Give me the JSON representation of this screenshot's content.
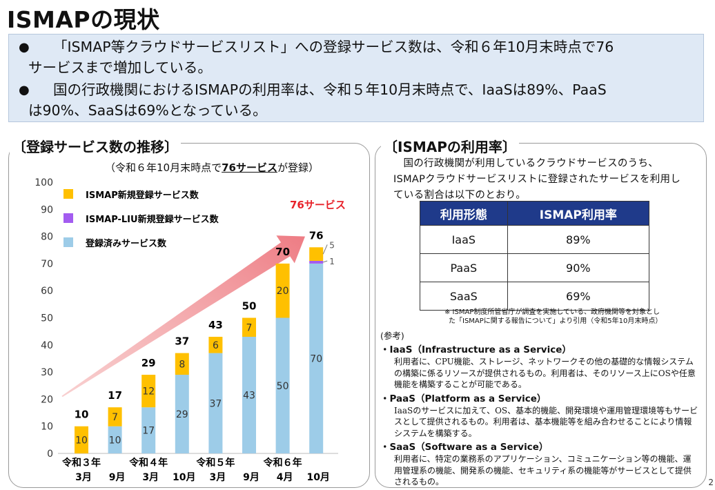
{
  "title": "ISMAPの現状",
  "summary": {
    "bullet": "●",
    "b1_line1": "「ISMAP等クラウドサービスリスト」への登録サービス数は、令和６年10月末時点で76",
    "b1_line2": "サービスまで増加している。",
    "b2_line1": "国の行政機関におけるISMAPの利用率は、令和５年10月末時点で、IaaSは89%、PaaS",
    "b2_line2": "は90%、SaaSは69%となっている。"
  },
  "left": {
    "title": "〔登録サービス数の推移〕",
    "note_prefix": "（令和６年10月末時点で",
    "note_bold": "76サービス",
    "note_suffix": "が登録）",
    "highlight": "76サービス"
  },
  "chart_data": {
    "type": "bar",
    "stacked": true,
    "categories": [
      "令和３年 3月",
      "9月",
      "令和４年 3月",
      "10月",
      "令和５年 3月",
      "9月",
      "令和６年 4月",
      "10月"
    ],
    "x_top_labels": [
      "令和３年",
      "",
      "令和４年",
      "",
      "令和５年",
      "",
      "令和６年",
      ""
    ],
    "x_bottom_labels": [
      "3月",
      "9月",
      "3月",
      "10月",
      "3月",
      "9月",
      "4月",
      "10月"
    ],
    "series": [
      {
        "name": "登録済みサービス数",
        "color": "#9dcce8",
        "values": [
          0,
          10,
          17,
          29,
          37,
          43,
          50,
          70
        ]
      },
      {
        "name": "ISMAP-LIU新規登録サービス数",
        "color": "#a35cf0",
        "values": [
          0,
          0,
          0,
          0,
          0,
          0,
          0,
          1
        ]
      },
      {
        "name": "ISMAP新規登録サービス数",
        "color": "#ffc000",
        "values": [
          10,
          7,
          12,
          8,
          6,
          7,
          20,
          5
        ]
      }
    ],
    "totals": [
      10,
      17,
      29,
      37,
      43,
      50,
      70,
      76
    ],
    "yticks": [
      0,
      10,
      20,
      30,
      40,
      50,
      60,
      70,
      80,
      90,
      100
    ],
    "ylim": [
      0,
      100
    ],
    "legend_position": "top-left",
    "grid": false
  },
  "right": {
    "title": "〔ISMAPの利用率〕",
    "intro": "国の行政機関が利用しているクラウドサービスのうち、ISMAPクラウドサービスリストに登録されたサービスを利用している割合は以下のとおり。",
    "table_headers": [
      "利用形態",
      "ISMAP利用率"
    ],
    "rows": [
      {
        "type": "IaaS",
        "rate": "89%"
      },
      {
        "type": "PaaS",
        "rate": "90%"
      },
      {
        "type": "SaaS",
        "rate": "69%"
      }
    ],
    "source_1": "※ ISMAP制度所管省庁が調査を実施している、政府機関等を対象とし",
    "source_2": "た「ISMAPに関する報告について」より引用（令和5年10月末時点）",
    "ref_title": "(参考)",
    "refs": [
      {
        "head": "・IaaS（Infrastructure as a Service）",
        "body": "利用者に、CPU機能、ストレージ、ネットワークその他の基礎的な情報システムの構築に係るリソースが提供されるもの。利用者は、そのリソース上にOSや任意機能を構築することが可能である。"
      },
      {
        "head": "・PaaS（Platform as a Service）",
        "body": "IaaSのサービスに加えて、OS、基本的機能、開発環境や運用管理環境等もサービスとして提供されるもの。利用者は、基本機能等を組み合わせることにより情報システムを構築する。"
      },
      {
        "head": "・SaaS（Software as a Service）",
        "body": "利用者に、特定の業務系のアプリケーション、コミュニケーション等の機能、運用管理系の機能、開発系の機能、セキュリティ系の機能等がサービスとして提供されるもの。"
      }
    ]
  },
  "page_number": "2"
}
